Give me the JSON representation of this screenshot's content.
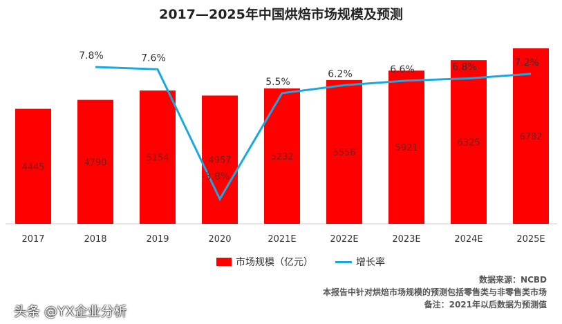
{
  "title": "2017—2025年中国烘焙市场规模及预测",
  "chart_data": {
    "type": "bar",
    "title": "2017—2025年中国烘焙市场规模及预测",
    "categories": [
      "2017",
      "2018",
      "2019",
      "2020",
      "2021E",
      "2022E",
      "2023E",
      "2024E",
      "2025E"
    ],
    "series": [
      {
        "name": "市场规模（亿元）",
        "type": "bar",
        "color": "#ff0000",
        "values": [
          4445,
          4790,
          5154,
          4957,
          5232,
          5556,
          5921,
          6325,
          6782
        ]
      },
      {
        "name": "增长率",
        "type": "line",
        "color": "#1aa7e0",
        "values": [
          null,
          7.8,
          7.6,
          -3.8,
          5.5,
          6.2,
          6.6,
          6.8,
          7.2
        ],
        "labels": [
          "",
          "7.8%",
          "7.6%",
          "-3.8%",
          "5.5%",
          "6.2%",
          "6.6%",
          "6.8%",
          "7.2%"
        ]
      }
    ],
    "xlabel": "",
    "ylabel": "",
    "legend": "bottom"
  },
  "legend": {
    "bar": "市场规模（亿元）",
    "line": "增长率"
  },
  "notes": {
    "source": "数据来源：NCBD",
    "desc": "本报告中针对烘焙市场规模的预测包括零售类与非零售类市场",
    "remark": "备注：2021年以后数据为预测值"
  },
  "watermark": "头条 @YX企业分析"
}
